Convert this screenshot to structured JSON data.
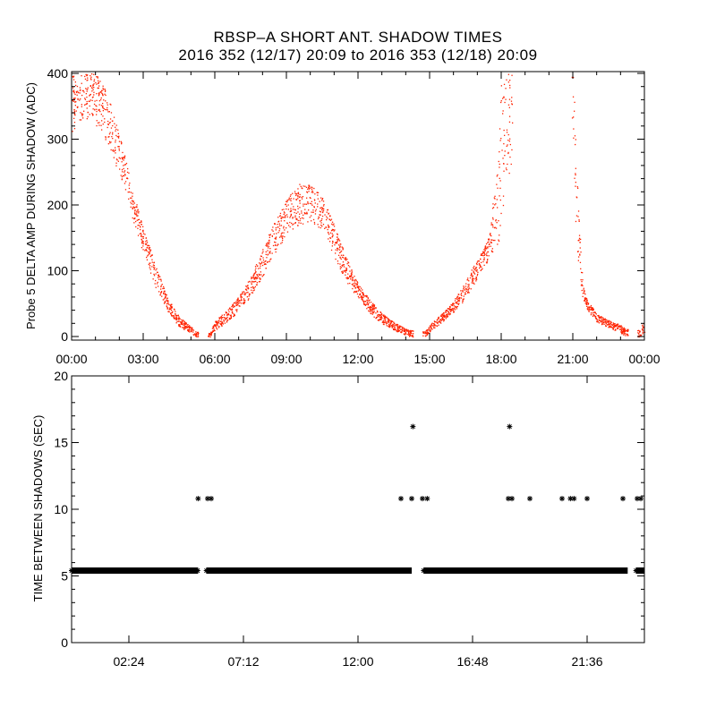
{
  "title": {
    "line1": "RBSP–A SHORT ANT. SHADOW TIMES",
    "line2": "2016 352 (12/17) 20:09 to 2016 353 (12/18) 20:09"
  },
  "colors": {
    "points": "#ff2200",
    "axes": "#000000",
    "stars": "#000000",
    "background": "#ffffff"
  },
  "chart_data": [
    {
      "type": "scatter",
      "name": "probe5-delta-amp",
      "title": "",
      "xlabel": "",
      "ylabel": "Probe 5 DELTA AMP DURING SHADOW (ADC)",
      "xlim_hours": [
        0,
        24
      ],
      "ylim": [
        0,
        400
      ],
      "xticks_hours": [
        0,
        3,
        6,
        9,
        12,
        15,
        18,
        21,
        24
      ],
      "xtick_labels": [
        "00:00",
        "03:00",
        "06:00",
        "09:00",
        "12:00",
        "15:00",
        "18:00",
        "21:00",
        "00:00"
      ],
      "yticks": [
        0,
        100,
        200,
        300,
        400
      ],
      "ytick_labels": [
        "0",
        "100",
        "200",
        "300",
        "400"
      ],
      "envelope": {
        "x": [
          0.0,
          0.5,
          1.0,
          1.5,
          2.0,
          2.5,
          3.0,
          3.5,
          4.0,
          4.5,
          5.0,
          5.2,
          5.8,
          6.0,
          6.5,
          7.0,
          7.5,
          8.0,
          8.5,
          9.0,
          9.5,
          10.0,
          10.5,
          11.0,
          11.5,
          12.0,
          12.5,
          13.0,
          13.5,
          14.0,
          14.2,
          14.8,
          15.0,
          15.5,
          16.0,
          16.5,
          17.0,
          17.5,
          17.9,
          18.0,
          18.2,
          18.4,
          21.0,
          21.1,
          21.2,
          21.4,
          21.6,
          22.0,
          22.5,
          23.0,
          23.2,
          23.8,
          24.0
        ],
        "low": [
          310,
          330,
          320,
          295,
          245,
          185,
          125,
          75,
          40,
          15,
          5,
          0,
          0,
          10,
          22,
          38,
          62,
          92,
          125,
          155,
          170,
          175,
          160,
          120,
          82,
          58,
          35,
          20,
          10,
          2,
          0,
          0,
          8,
          22,
          38,
          58,
          90,
          120,
          140,
          175,
          210,
          260,
          300,
          175,
          110,
          60,
          40,
          22,
          14,
          6,
          0,
          0,
          5
        ],
        "high": [
          400,
          400,
          400,
          370,
          310,
          230,
          165,
          110,
          60,
          30,
          15,
          8,
          6,
          25,
          40,
          62,
          92,
          135,
          175,
          210,
          232,
          232,
          212,
          170,
          120,
          80,
          55,
          35,
          22,
          12,
          10,
          8,
          18,
          35,
          55,
          85,
          120,
          155,
          300,
          400,
          400,
          400,
          400,
          320,
          215,
          80,
          55,
          35,
          25,
          18,
          12,
          10,
          28
        ]
      },
      "gaps_hours": [
        [
          5.3,
          5.7
        ],
        [
          14.3,
          14.7
        ],
        [
          18.45,
          20.95
        ],
        [
          23.3,
          23.7
        ]
      ],
      "approx_point_count": 3200
    },
    {
      "type": "scatter",
      "name": "time-between-shadows",
      "title": "",
      "xlabel": "",
      "ylabel": "TIME BETWEEN SHADOWS (SEC)",
      "xlim_hours": [
        0,
        24
      ],
      "ylim": [
        0,
        20
      ],
      "xticks_hours": [
        2.4,
        7.2,
        12.0,
        16.8,
        21.6
      ],
      "xtick_labels": [
        "02:24",
        "07:12",
        "12:00",
        "16:48",
        "21:36"
      ],
      "yticks": [
        0,
        5,
        10,
        15,
        20
      ],
      "ytick_labels": [
        "0",
        "5",
        "10",
        "15",
        "20"
      ],
      "baseline": {
        "value": 5.4,
        "segments_hours": [
          [
            0.0,
            5.3
          ],
          [
            5.65,
            14.25
          ],
          [
            14.75,
            23.3
          ],
          [
            23.65,
            24.0
          ]
        ],
        "step_hours": 0.08
      },
      "outliers": {
        "x_hours": [
          5.3,
          5.7,
          5.85,
          13.8,
          14.25,
          14.7,
          14.9,
          18.3,
          18.45,
          19.2,
          20.55,
          20.9,
          21.05,
          21.6,
          23.1,
          23.7,
          23.85,
          14.3,
          18.35
        ],
        "y": [
          10.8,
          10.8,
          10.8,
          10.8,
          10.8,
          10.8,
          10.8,
          10.8,
          10.8,
          10.8,
          10.8,
          10.8,
          10.8,
          10.8,
          10.8,
          10.8,
          10.8,
          16.2,
          16.2
        ]
      }
    }
  ]
}
